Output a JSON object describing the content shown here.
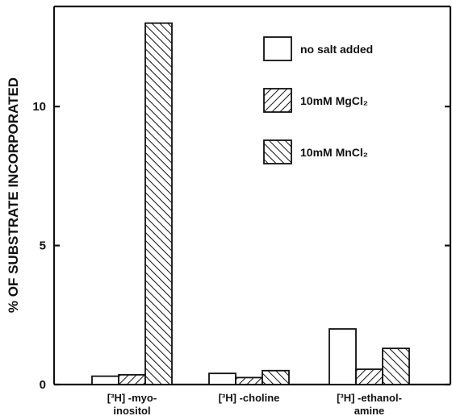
{
  "chart_data": {
    "type": "bar",
    "ylabel": "% OF SUBSTRATE INCORPORATED",
    "ylim": [
      0,
      13.6
    ],
    "yticks": [
      0,
      5,
      10
    ],
    "grid": false,
    "legend_position": "top-right",
    "categories": [
      {
        "line1": "[³H] -myo-",
        "line2": "inositol"
      },
      {
        "line1": "[³H] -choline",
        "line2": ""
      },
      {
        "line1": "[³H] -ethanol-",
        "line2": "amine"
      }
    ],
    "series": [
      {
        "name": "no salt added",
        "pattern": "none",
        "values": [
          0.3,
          0.4,
          2.0
        ]
      },
      {
        "name": "10mM MgCl₂",
        "pattern": "hatch-forward",
        "values": [
          0.35,
          0.25,
          0.55
        ]
      },
      {
        "name": "10mM MnCl₂",
        "pattern": "hatch-backward",
        "values": [
          13.0,
          0.5,
          1.3
        ]
      }
    ]
  }
}
